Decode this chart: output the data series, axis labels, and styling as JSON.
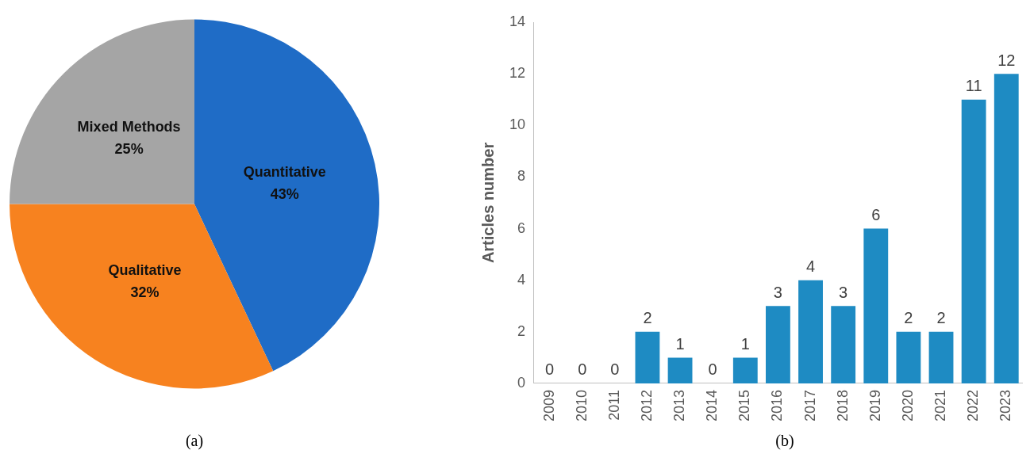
{
  "chart_data": [
    {
      "type": "pie",
      "categories": [
        "Quantitative",
        "Qualitative",
        "Mixed Methods"
      ],
      "values": [
        43,
        32,
        25
      ],
      "colors": [
        "#1f6cc6",
        "#f7821f",
        "#a5a5a5"
      ],
      "value_labels": [
        "43%",
        "32%",
        "25%"
      ],
      "annotations": [
        "(a)"
      ]
    },
    {
      "type": "bar",
      "categories": [
        "2009",
        "2010",
        "2011",
        "2012",
        "2013",
        "2014",
        "2015",
        "2016",
        "2017",
        "2018",
        "2019",
        "2020",
        "2021",
        "2022",
        "2023"
      ],
      "values": [
        0,
        0,
        0,
        2,
        1,
        0,
        1,
        3,
        4,
        3,
        6,
        2,
        2,
        11,
        12
      ],
      "color": "#1e8bc3",
      "ylabel": "Articles number",
      "ylim": [
        0,
        14
      ],
      "yticks": [
        0,
        2,
        4,
        6,
        8,
        10,
        12,
        14
      ],
      "data_labels": true,
      "annotations": [
        "(b)"
      ]
    }
  ]
}
